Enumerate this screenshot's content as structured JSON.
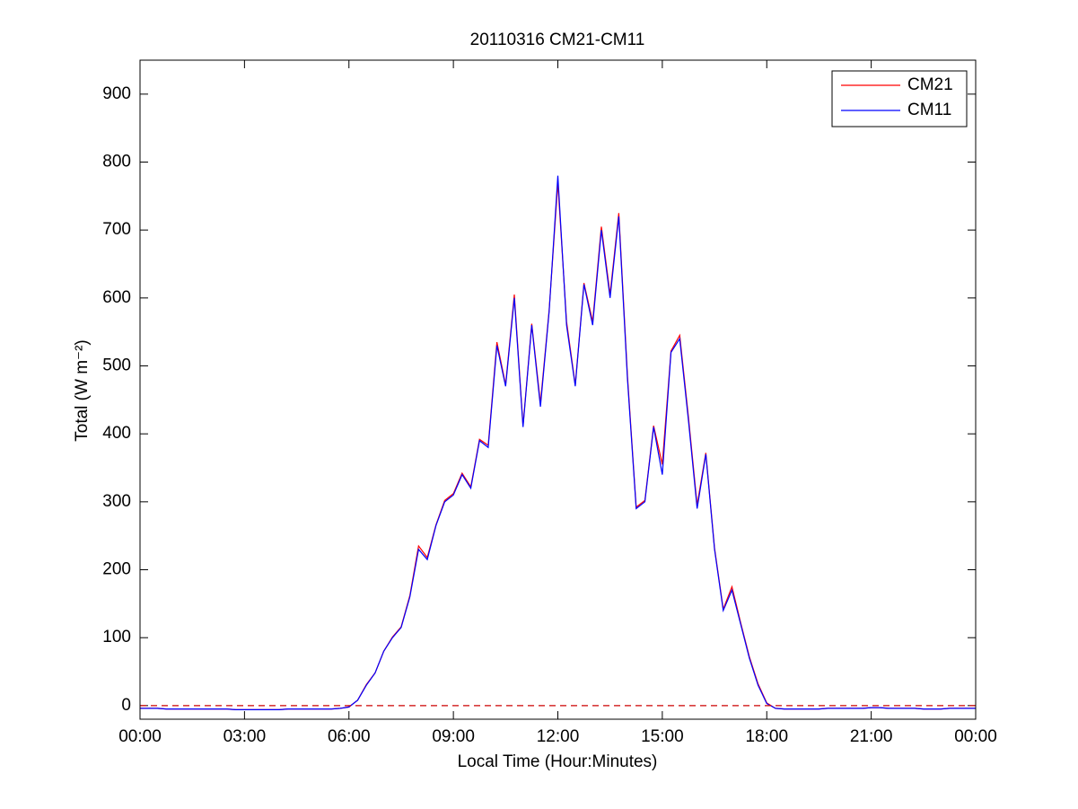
{
  "chart_data": {
    "type": "line",
    "title": "20110316 CM21-CM11",
    "xlabel": "Local Time (Hour:Minutes)",
    "ylabel": "Total (W m⁻²)",
    "x": [
      0,
      0.25,
      0.5,
      0.75,
      1,
      1.25,
      1.5,
      1.75,
      2,
      2.25,
      2.5,
      2.75,
      3,
      3.25,
      3.5,
      3.75,
      4,
      4.25,
      4.5,
      4.75,
      5,
      5.25,
      5.5,
      5.75,
      6,
      6.25,
      6.5,
      6.75,
      7,
      7.25,
      7.5,
      7.75,
      8,
      8.25,
      8.5,
      8.75,
      9,
      9.25,
      9.5,
      9.75,
      10,
      10.25,
      10.5,
      10.75,
      11,
      11.25,
      11.5,
      11.75,
      12,
      12.25,
      12.5,
      12.75,
      13,
      13.25,
      13.5,
      13.75,
      14,
      14.25,
      14.5,
      14.75,
      15,
      15.25,
      15.5,
      15.75,
      16,
      16.25,
      16.5,
      16.75,
      17,
      17.25,
      17.5,
      17.75,
      18,
      18.25,
      18.5,
      18.75,
      19,
      19.25,
      19.5,
      19.75,
      20,
      20.25,
      20.5,
      20.75,
      21,
      21.25,
      21.5,
      21.75,
      22,
      22.25,
      22.5,
      22.75,
      23,
      23.25,
      23.5,
      23.75,
      24
    ],
    "series": [
      {
        "name": "CM21",
        "color": "#ff0000",
        "values": [
          -4,
          -4,
          -4,
          -5,
          -5,
          -5,
          -5,
          -5,
          -5,
          -5,
          -5,
          -6,
          -6,
          -6,
          -6,
          -6,
          -6,
          -5,
          -5,
          -5,
          -5,
          -5,
          -5,
          -4,
          -2,
          8,
          31,
          48,
          80,
          101,
          116,
          162,
          235,
          218,
          266,
          302,
          312,
          342,
          322,
          392,
          383,
          535,
          472,
          605,
          412,
          562,
          445,
          582,
          770,
          565,
          472,
          622,
          565,
          705,
          605,
          725,
          485,
          292,
          302,
          412,
          355,
          522,
          545,
          425,
          295,
          372,
          232,
          142,
          175,
          122,
          72,
          32,
          4,
          -4,
          -5,
          -5,
          -5,
          -5,
          -5,
          -4,
          -4,
          -4,
          -4,
          -4,
          -3,
          -3,
          -4,
          -4,
          -4,
          -4,
          -5,
          -5,
          -5,
          -4,
          -4,
          -4,
          -4
        ]
      },
      {
        "name": "CM11",
        "color": "#0000ff",
        "values": [
          -4,
          -4,
          -4,
          -5,
          -5,
          -5,
          -5,
          -5,
          -5,
          -5,
          -5,
          -6,
          -6,
          -6,
          -6,
          -6,
          -6,
          -5,
          -5,
          -5,
          -5,
          -5,
          -5,
          -4,
          -2,
          8,
          30,
          48,
          80,
          100,
          115,
          160,
          230,
          215,
          265,
          300,
          310,
          340,
          320,
          390,
          380,
          530,
          470,
          600,
          410,
          560,
          440,
          580,
          780,
          560,
          470,
          620,
          560,
          700,
          600,
          720,
          480,
          290,
          300,
          410,
          340,
          520,
          540,
          420,
          290,
          370,
          230,
          140,
          170,
          120,
          70,
          30,
          3,
          -4,
          -5,
          -5,
          -5,
          -5,
          -5,
          -4,
          -4,
          -4,
          -4,
          -4,
          -3,
          -3,
          -4,
          -4,
          -4,
          -4,
          -5,
          -5,
          -5,
          -4,
          -4,
          -4,
          -4
        ]
      }
    ],
    "reference_line": {
      "value": 0,
      "color": "#cc0000",
      "style": "dashed"
    },
    "xlim": [
      0,
      24
    ],
    "xticks": [
      {
        "value": 0,
        "label": "00:00"
      },
      {
        "value": 3,
        "label": "03:00"
      },
      {
        "value": 6,
        "label": "06:00"
      },
      {
        "value": 9,
        "label": "09:00"
      },
      {
        "value": 12,
        "label": "12:00"
      },
      {
        "value": 15,
        "label": "15:00"
      },
      {
        "value": 18,
        "label": "18:00"
      },
      {
        "value": 21,
        "label": "21:00"
      },
      {
        "value": 24,
        "label": "00:00"
      }
    ],
    "ylim": [
      -20,
      950
    ],
    "yticks": [
      0,
      100,
      200,
      300,
      400,
      500,
      600,
      700,
      800,
      900
    ],
    "grid": false,
    "legend": "northeast"
  }
}
